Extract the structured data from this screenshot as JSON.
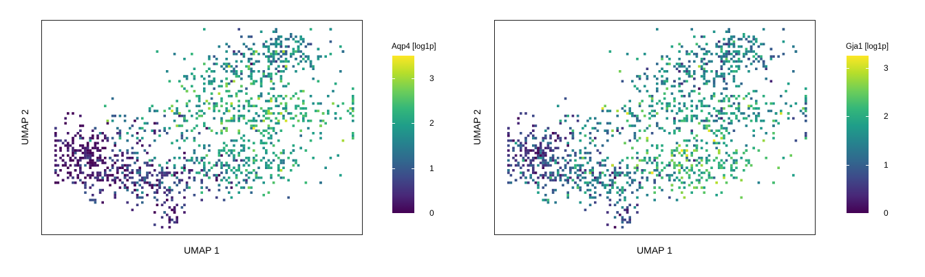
{
  "chart_data": [
    {
      "type": "scatter",
      "subtype": "umap-hexbin-embedding",
      "xlabel": "UMAP 1",
      "ylabel": "UMAP 2",
      "colorbar": {
        "label": "Aqp4 [log1p]",
        "min": 0,
        "max": 3.5,
        "ticks": [
          0,
          1,
          2,
          3
        ],
        "colormap": "viridis"
      },
      "regions": [
        {
          "x": 0.12,
          "y": 0.62,
          "spread_x": 0.055,
          "spread_y": 0.07,
          "n": 220,
          "value_mean": 0.15,
          "value_sd": 0.2
        },
        {
          "x": 0.34,
          "y": 0.73,
          "spread_x": 0.12,
          "spread_y": 0.06,
          "n": 280,
          "value_mean": 0.6,
          "value_sd": 0.45
        },
        {
          "x": 0.62,
          "y": 0.65,
          "spread_x": 0.12,
          "spread_y": 0.07,
          "n": 240,
          "value_mean": 1.85,
          "value_sd": 0.4
        },
        {
          "x": 0.68,
          "y": 0.42,
          "spread_x": 0.17,
          "spread_y": 0.07,
          "n": 320,
          "value_mean": 2.2,
          "value_sd": 0.45
        },
        {
          "x": 0.74,
          "y": 0.14,
          "spread_x": 0.085,
          "spread_y": 0.055,
          "n": 180,
          "value_mean": 1.55,
          "value_sd": 0.45
        },
        {
          "x": 0.59,
          "y": 0.24,
          "spread_x": 0.1,
          "spread_y": 0.05,
          "n": 140,
          "value_mean": 1.9,
          "value_sd": 0.5
        },
        {
          "x": 0.3,
          "y": 0.5,
          "spread_x": 0.1,
          "spread_y": 0.05,
          "n": 70,
          "value_mean": 1.1,
          "value_sd": 0.6
        },
        {
          "x": 0.4,
          "y": 0.9,
          "spread_x": 0.03,
          "spread_y": 0.03,
          "n": 25,
          "value_mean": 0.4,
          "value_sd": 0.3
        }
      ]
    },
    {
      "type": "scatter",
      "subtype": "umap-hexbin-embedding",
      "xlabel": "UMAP 1",
      "ylabel": "UMAP 2",
      "colorbar": {
        "label": "Gja1 [log1p]",
        "min": 0,
        "max": 3.25,
        "ticks": [
          0,
          1,
          2,
          3
        ],
        "colormap": "viridis"
      },
      "regions": [
        {
          "x": 0.12,
          "y": 0.62,
          "spread_x": 0.055,
          "spread_y": 0.07,
          "n": 220,
          "value_mean": 0.6,
          "value_sd": 0.35
        },
        {
          "x": 0.34,
          "y": 0.73,
          "spread_x": 0.12,
          "spread_y": 0.06,
          "n": 280,
          "value_mean": 1.3,
          "value_sd": 0.5
        },
        {
          "x": 0.62,
          "y": 0.65,
          "spread_x": 0.12,
          "spread_y": 0.07,
          "n": 240,
          "value_mean": 2.1,
          "value_sd": 0.45
        },
        {
          "x": 0.68,
          "y": 0.42,
          "spread_x": 0.17,
          "spread_y": 0.07,
          "n": 320,
          "value_mean": 1.75,
          "value_sd": 0.5
        },
        {
          "x": 0.74,
          "y": 0.14,
          "spread_x": 0.085,
          "spread_y": 0.055,
          "n": 180,
          "value_mean": 1.35,
          "value_sd": 0.45
        },
        {
          "x": 0.59,
          "y": 0.24,
          "spread_x": 0.1,
          "spread_y": 0.05,
          "n": 140,
          "value_mean": 1.4,
          "value_sd": 0.5
        },
        {
          "x": 0.3,
          "y": 0.5,
          "spread_x": 0.1,
          "spread_y": 0.05,
          "n": 70,
          "value_mean": 1.3,
          "value_sd": 0.55
        },
        {
          "x": 0.4,
          "y": 0.9,
          "spread_x": 0.03,
          "spread_y": 0.03,
          "n": 25,
          "value_mean": 0.6,
          "value_sd": 0.35
        }
      ]
    }
  ]
}
